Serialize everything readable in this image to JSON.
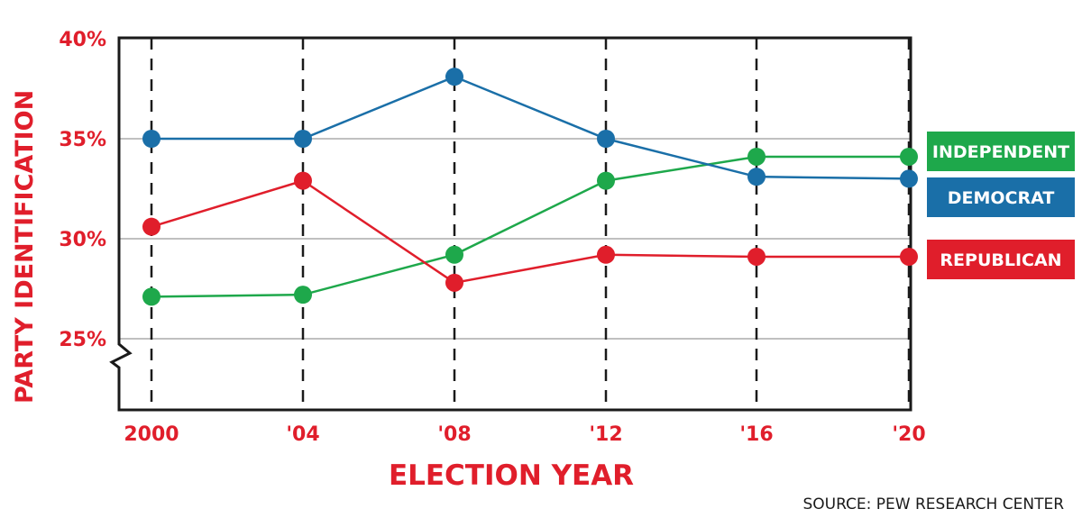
{
  "chart_data": {
    "type": "line",
    "ylabel": "PARTY IDENTIFICATION",
    "xlabel": "ELECTION YEAR",
    "source": "SOURCE: PEW RESEARCH CENTER",
    "categories": [
      "2000",
      "'04",
      "'08",
      "'12",
      "'16",
      "'20"
    ],
    "yticks": [
      "40%",
      "35%",
      "30%",
      "25%"
    ],
    "ytick_values": [
      40,
      35,
      30,
      25
    ],
    "ylim": [
      21.5,
      40
    ],
    "axis_break": true,
    "grid": "horizontal gridlines, dashed vertical lines at each election year",
    "legend_placement": "right",
    "series": [
      {
        "name": "INDEPENDENT",
        "color": "#1ea84b",
        "values": [
          27.1,
          27.2,
          29.2,
          32.9,
          34.1,
          34.1
        ]
      },
      {
        "name": "DEMOCRAT",
        "color": "#1a6fa8",
        "values": [
          35.0,
          35.0,
          38.1,
          35.0,
          33.1,
          33.0
        ]
      },
      {
        "name": "REPUBLICAN",
        "color": "#e01e2b",
        "values": [
          30.6,
          32.9,
          27.8,
          29.2,
          29.1,
          29.1
        ]
      }
    ]
  }
}
